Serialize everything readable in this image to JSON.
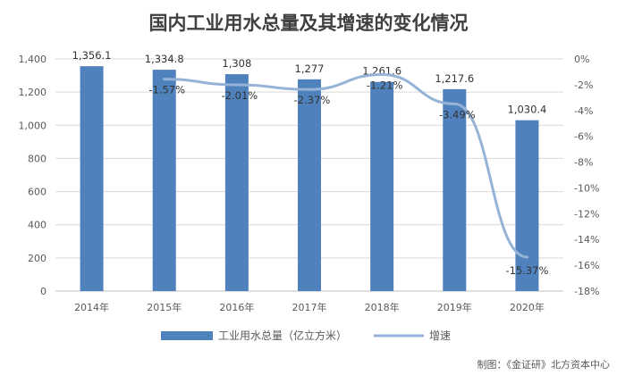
{
  "chart_data": {
    "type": "bar",
    "title": "国内工业用水总量及其增速的变化情况",
    "categories": [
      "2014年",
      "2015年",
      "2016年",
      "2017年",
      "2018年",
      "2019年",
      "2020年"
    ],
    "series": [
      {
        "name": "工业用水总量（亿立方米）",
        "type": "bar",
        "axis": "left",
        "color": "#4f81bd",
        "values": [
          1356.1,
          1334.8,
          1308,
          1277,
          1261.6,
          1217.6,
          1030.4
        ],
        "labels": [
          "1,356.1",
          "1,334.8",
          "1,308",
          "1,277",
          "1,261.6",
          "1,217.6",
          "1,030.4"
        ]
      },
      {
        "name": "增速",
        "type": "line",
        "axis": "right",
        "color": "#95b3d7",
        "values": [
          null,
          -1.57,
          -2.01,
          -2.37,
          -1.21,
          -3.49,
          -15.37
        ],
        "labels": [
          "",
          "-1.57%",
          "-2.01%",
          "-2.37%",
          "-1.21%",
          "-3.49%",
          "-15.37%"
        ]
      }
    ],
    "y_left": {
      "lim": [
        0,
        1400
      ],
      "ticks": [
        "0",
        "200",
        "400",
        "600",
        "800",
        "1,000",
        "1,200",
        "1,400"
      ]
    },
    "y_right": {
      "lim": [
        -18,
        0
      ],
      "ticks": [
        "0%",
        "-2%",
        "-4%",
        "-6%",
        "-8%",
        "-10%",
        "-12%",
        "-14%",
        "-16%",
        "-18%"
      ]
    },
    "grid": true,
    "legend_position": "bottom"
  },
  "credit": "制图：《金证研》北方资本中心"
}
